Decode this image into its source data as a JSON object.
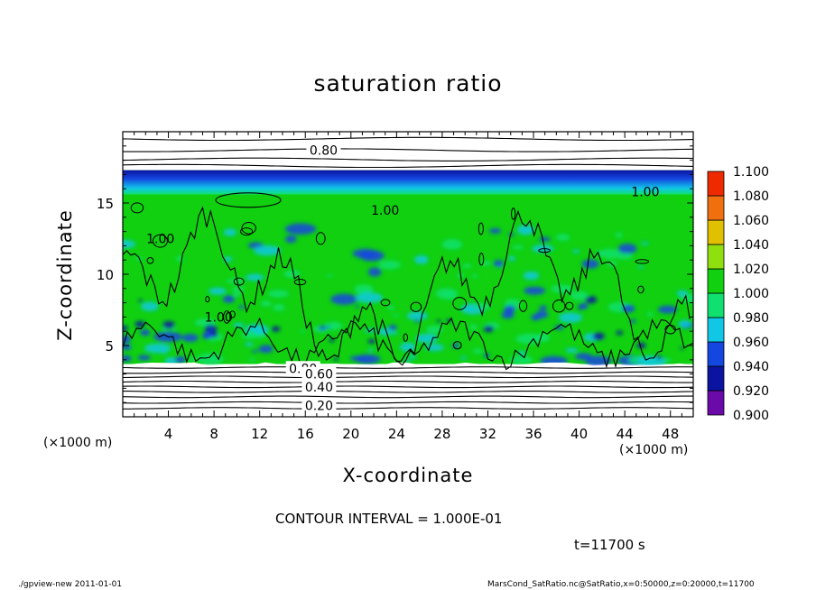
{
  "chart_data": {
    "type": "heatmap",
    "title": "saturation ratio",
    "xlabel": "X-coordinate",
    "ylabel": "Z-coordinate",
    "x_unit_label": "(×1000 m)",
    "x_unit_label_right": "(×1000 m)",
    "xlim": [
      0,
      50
    ],
    "ylim": [
      0,
      20
    ],
    "x_ticks": [
      4,
      8,
      12,
      16,
      20,
      24,
      28,
      32,
      36,
      40,
      44,
      48
    ],
    "y_ticks": [
      5,
      10,
      15
    ],
    "colorbar": {
      "levels": [
        "0.900",
        "0.920",
        "0.940",
        "0.960",
        "0.980",
        "1.000",
        "1.020",
        "1.040",
        "1.060",
        "1.080",
        "1.100"
      ],
      "colors": [
        "#6a0aa8",
        "#0a14a0",
        "#1446e0",
        "#10c8e6",
        "#10e070",
        "#10d010",
        "#90e010",
        "#e0c000",
        "#f07010",
        "#f02a00",
        "#f08080"
      ]
    },
    "contour_labels": [
      {
        "text": "0.80",
        "x": 17.6,
        "z": 18.7
      },
      {
        "text": "1.00",
        "x": 45.8,
        "z": 15.8
      },
      {
        "text": "1.00",
        "x": 23.0,
        "z": 14.5
      },
      {
        "text": "1.00",
        "x": 3.3,
        "z": 12.5
      },
      {
        "text": "1.00",
        "x": 8.4,
        "z": 7.0
      },
      {
        "text": "0.80",
        "x": 15.8,
        "z": 3.4
      },
      {
        "text": "0.60",
        "x": 17.2,
        "z": 3.0
      },
      {
        "text": "0.40",
        "x": 17.2,
        "z": 2.1
      },
      {
        "text": "0.20",
        "x": 17.2,
        "z": 0.8
      }
    ],
    "regions": {
      "saturated_layer_top_z": 17.3,
      "saturated_layer_bottom_z": 3.7,
      "cloud_deck_z": 17.0
    },
    "contour_interval_text": "CONTOUR INTERVAL = 1.000E-01",
    "time_text": "t=11700 s"
  },
  "footer": {
    "left": "./gpview-new   2011-01-01",
    "right": "MarsCond_SatRatio.nc@SatRatio,x=0:50000,z=0:20000,t=11700"
  }
}
